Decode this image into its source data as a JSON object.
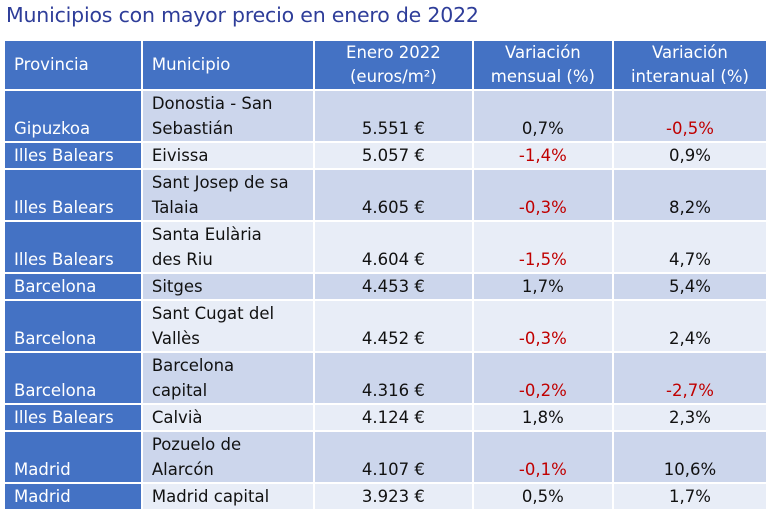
{
  "title": "Municipios con mayor precio en enero de 2022",
  "headers": {
    "provincia": "Provincia",
    "municipio": "Municipio",
    "precio_l1": "Enero 2022",
    "precio_l2": "(euros/m²)",
    "mensual_l1": "Variación",
    "mensual_l2": "mensual (%)",
    "interanual_l1": "Variación",
    "interanual_l2": "interanual (%)"
  },
  "rows": [
    {
      "provincia": "Gipuzkoa",
      "municipio_l1": "Donostia - San",
      "municipio_l2": "Sebastián",
      "precio": "5.551 €",
      "mensual": "0,7%",
      "interanual": "-0,5%"
    },
    {
      "provincia": "Illes Balears",
      "municipio_l1": "Eivissa",
      "municipio_l2": "",
      "precio": "5.057 €",
      "mensual": "-1,4%",
      "interanual": "0,9%"
    },
    {
      "provincia": "Illes Balears",
      "municipio_l1": "Sant Josep de sa",
      "municipio_l2": "Talaia",
      "precio": "4.605 €",
      "mensual": "-0,3%",
      "interanual": "8,2%"
    },
    {
      "provincia": "Illes Balears",
      "municipio_l1": "Santa Eulària",
      "municipio_l2": "des Riu",
      "precio": "4.604 €",
      "mensual": "-1,5%",
      "interanual": "4,7%"
    },
    {
      "provincia": "Barcelona",
      "municipio_l1": "Sitges",
      "municipio_l2": "",
      "precio": "4.453 €",
      "mensual": "1,7%",
      "interanual": "5,4%"
    },
    {
      "provincia": "Barcelona",
      "municipio_l1": "Sant Cugat del",
      "municipio_l2": "Vallès",
      "precio": "4.452 €",
      "mensual": "-0,3%",
      "interanual": "2,4%"
    },
    {
      "provincia": "Barcelona",
      "municipio_l1": "Barcelona",
      "municipio_l2": "capital",
      "precio": "4.316 €",
      "mensual": "-0,2%",
      "interanual": "-2,7%"
    },
    {
      "provincia": "Illes Balears",
      "municipio_l1": "Calvià",
      "municipio_l2": "",
      "precio": "4.124 €",
      "mensual": "1,8%",
      "interanual": "2,3%"
    },
    {
      "provincia": "Madrid",
      "municipio_l1": "Pozuelo de",
      "municipio_l2": "Alarcón",
      "precio": "4.107 €",
      "mensual": "-0,1%",
      "interanual": "10,6%"
    },
    {
      "provincia": "Madrid",
      "municipio_l1": "Madrid capital",
      "municipio_l2": "",
      "precio": "3.923 €",
      "mensual": "0,5%",
      "interanual": "1,7%"
    }
  ],
  "colors": {
    "header_bg": "#4472c4",
    "row_odd": "#ccd6ec",
    "row_even": "#e8edf7",
    "negative_text": "#c00000",
    "title_text": "#2e3d99"
  }
}
